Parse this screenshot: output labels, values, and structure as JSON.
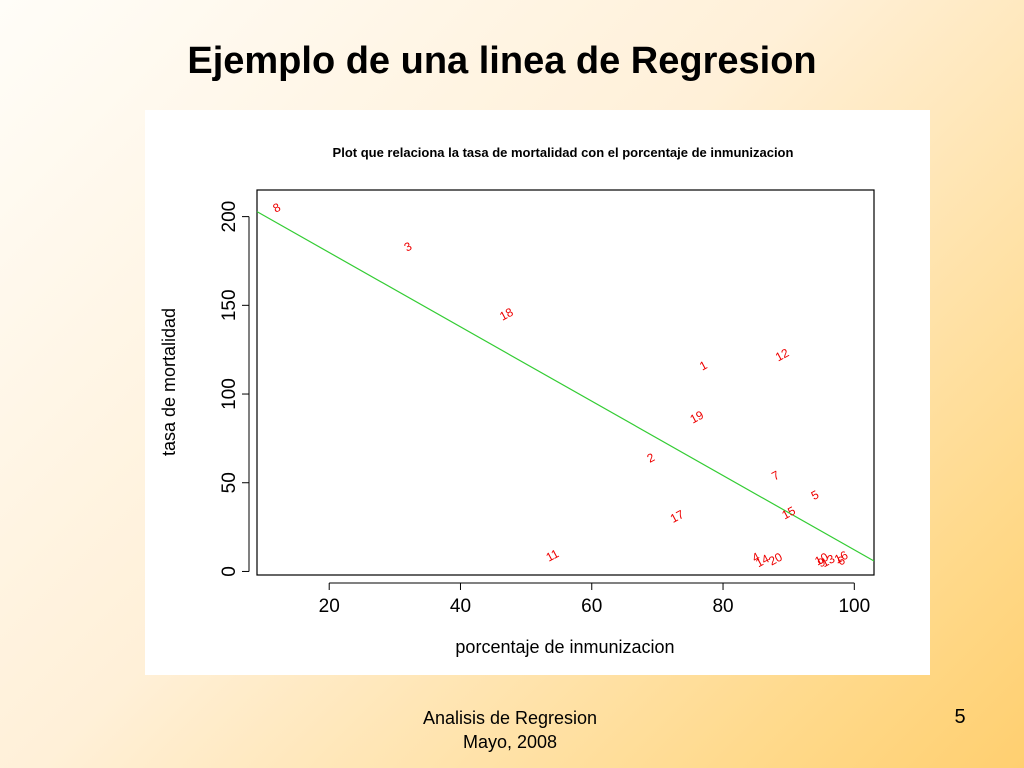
{
  "slide": {
    "title": "Ejemplo de una linea de Regresion",
    "footer_line1": "Analisis de Regresion",
    "footer_line2": "Mayo, 2008",
    "page_number": "5"
  },
  "chart_data": {
    "type": "scatter",
    "title": "Plot que relaciona la tasa de mortalidad con el porcentaje de inmunizacion",
    "xlabel": "porcentaje de inmunizacion",
    "ylabel": "tasa de mortalidad",
    "xlim": [
      9,
      103
    ],
    "ylim": [
      -2,
      215
    ],
    "x_ticks": [
      20,
      40,
      60,
      80,
      100
    ],
    "y_ticks": [
      0,
      50,
      100,
      150,
      200
    ],
    "points": [
      {
        "label": "1",
        "x": 77,
        "y": 116
      },
      {
        "label": "2",
        "x": 69,
        "y": 64
      },
      {
        "label": "3",
        "x": 32,
        "y": 183
      },
      {
        "label": "4",
        "x": 85,
        "y": 8
      },
      {
        "label": "5",
        "x": 94,
        "y": 43
      },
      {
        "label": "6",
        "x": 98,
        "y": 6
      },
      {
        "label": "7",
        "x": 88,
        "y": 54
      },
      {
        "label": "8",
        "x": 12,
        "y": 205
      },
      {
        "label": "9",
        "x": 95,
        "y": 5
      },
      {
        "label": "10",
        "x": 95,
        "y": 7
      },
      {
        "label": "11",
        "x": 54,
        "y": 9
      },
      {
        "label": "12",
        "x": 89,
        "y": 122
      },
      {
        "label": "13",
        "x": 96,
        "y": 6
      },
      {
        "label": "14",
        "x": 86,
        "y": 6
      },
      {
        "label": "15",
        "x": 90,
        "y": 33
      },
      {
        "label": "16",
        "x": 98,
        "y": 8
      },
      {
        "label": "17",
        "x": 73,
        "y": 31
      },
      {
        "label": "18",
        "x": 47,
        "y": 145
      },
      {
        "label": "19",
        "x": 76,
        "y": 87
      },
      {
        "label": "20",
        "x": 88,
        "y": 7
      }
    ],
    "regression_line": {
      "x": [
        9,
        103
      ],
      "y": [
        202.8,
        5.9
      ]
    },
    "point_color": "#ee0000",
    "line_color": "#33cc33"
  }
}
